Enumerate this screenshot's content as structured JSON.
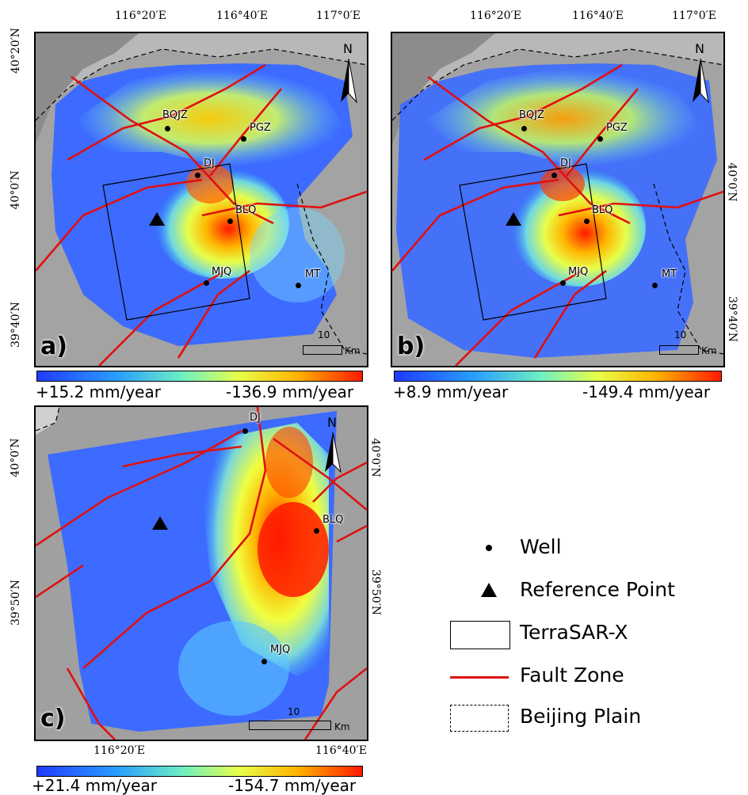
{
  "panels": {
    "a": {
      "letter": "a)",
      "wells": {
        "BQJZ": "BQJZ",
        "PGZ": "PGZ",
        "DJ": "DJ",
        "BLQ": "BLQ",
        "MJQ": "MJQ",
        "MT": "MT"
      },
      "scale_num": "10",
      "scale_unit": "Km",
      "north": "N",
      "lon_ticks": [
        "116°20′E",
        "116°40′E",
        "117°0′E"
      ],
      "lat_ticks": [
        "40°20′N",
        "40°0′N",
        "39°40′N"
      ],
      "colorbar_min": "+15.2 mm/year",
      "colorbar_max": "-136.9 mm/year"
    },
    "b": {
      "letter": "b)",
      "wells": {
        "BQJZ": "BQJZ",
        "PGZ": "PGZ",
        "DJ": "DJ",
        "BLQ": "BLQ",
        "MJQ": "MJQ",
        "MT": "MT"
      },
      "scale_num": "10",
      "scale_unit": "Km",
      "north": "N",
      "lon_ticks": [
        "116°20′E",
        "116°40′E",
        "117°0′E"
      ],
      "lat_ticks": [
        "40°0′N",
        "39°40′N"
      ],
      "colorbar_min": "+8.9 mm/year",
      "colorbar_max": "-149.4 mm/year"
    },
    "c": {
      "letter": "c)",
      "wells": {
        "DJ": "DJ",
        "BLQ": "BLQ",
        "MJQ": "MJQ"
      },
      "scale_num": "10",
      "scale_unit": "Km",
      "north": "N",
      "lon_ticks": [
        "116°20′E",
        "116°40′E"
      ],
      "lat_ticks": [
        "40°0′N",
        "39°50′N"
      ],
      "colorbar_min": "+21.4 mm/year",
      "colorbar_max": "-154.7 mm/year"
    }
  },
  "legend": {
    "well": "Well",
    "reference_point": "Reference Point",
    "terrasar": "TerraSAR-X",
    "fault_zone": "Fault Zone",
    "beijing_plain": "Beijing Plain"
  },
  "colors": {
    "fault": "#e01010",
    "low": "#1f3bff",
    "high": "#ff1a00"
  }
}
